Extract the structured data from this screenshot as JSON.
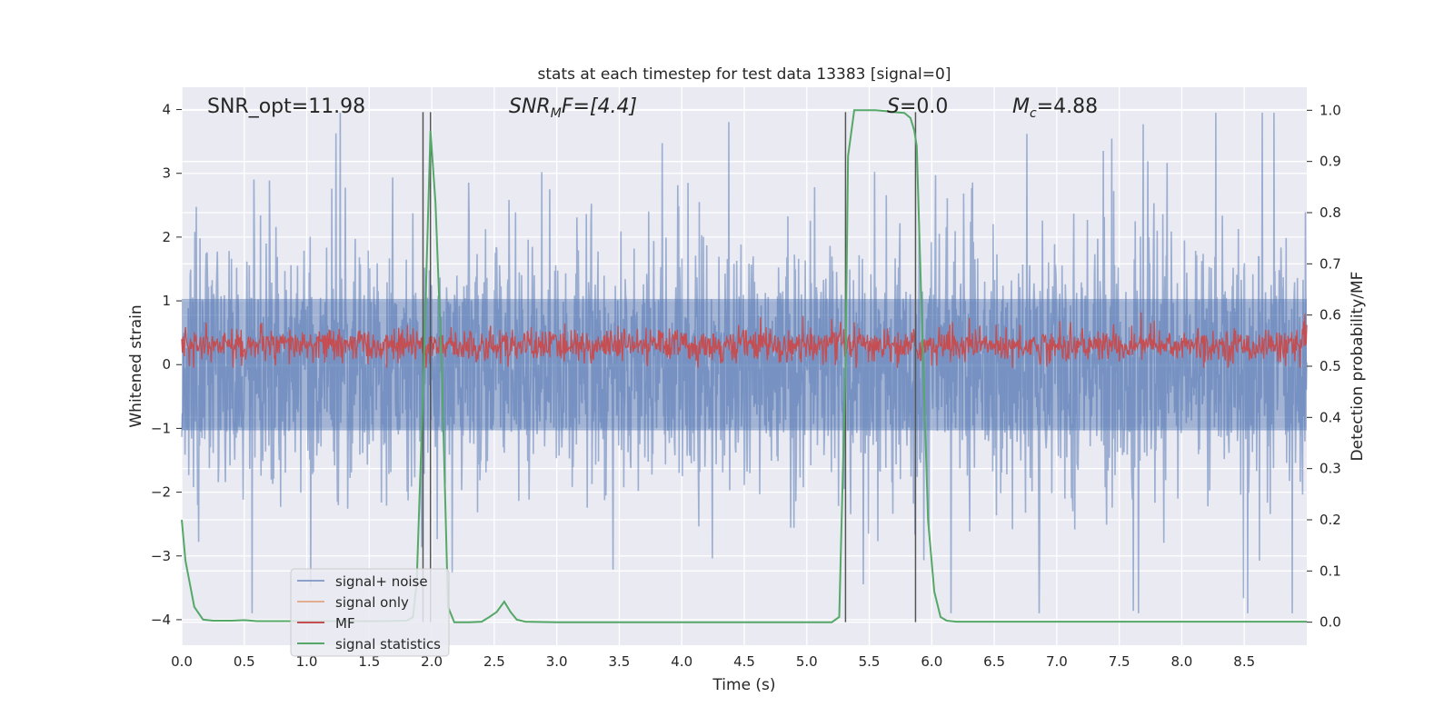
{
  "chart_data": {
    "type": "line",
    "title": "stats at each timestep for test data 13383 [signal=0]",
    "xlabel": "Time (s)",
    "ylabel": "Whitened strain",
    "ylabel_right": "Detection probability/MF",
    "xlim": [
      0,
      9.0
    ],
    "ylim": [
      -4.4,
      4.35
    ],
    "ylim_right": [
      -0.045,
      1.045
    ],
    "x_ticks": [
      0,
      0.5,
      1.0,
      1.5,
      2.0,
      2.5,
      3.0,
      3.5,
      4.0,
      4.5,
      5.0,
      5.5,
      6.0,
      6.5,
      7.0,
      7.5,
      8.0,
      8.5
    ],
    "x_tick_labels": [
      "0.0",
      "0.5",
      "1.0",
      "1.5",
      "2.0",
      "2.5",
      "3.0",
      "3.5",
      "4.0",
      "4.5",
      "5.0",
      "5.5",
      "6.0",
      "6.5",
      "7.0",
      "7.5",
      "8.0",
      "8.5"
    ],
    "y_ticks": [
      -4,
      -3,
      -2,
      -1,
      0,
      1,
      2,
      3,
      4
    ],
    "y_tick_labels": [
      "−4",
      "−3",
      "−2",
      "−1",
      "0",
      "1",
      "2",
      "3",
      "4"
    ],
    "y_right_ticks": [
      0,
      0.1,
      0.2,
      0.3,
      0.4,
      0.5,
      0.6,
      0.7,
      0.8,
      0.9,
      1.0
    ],
    "y_right_tick_labels": [
      "0.0",
      "0.1",
      "0.2",
      "0.3",
      "0.4",
      "0.5",
      "0.6",
      "0.7",
      "0.8",
      "0.9",
      "1.0"
    ],
    "grid": true,
    "legend_position": "lower-left",
    "annotations": {
      "snr_opt": "SNR_opt=11.98",
      "snr_mf_base": "SNR",
      "snr_mf_sub": "M",
      "snr_mf_rest": "F=[4.4]",
      "s_ital": "S",
      "s_rest": "=0.0",
      "mc_base": "M",
      "mc_sub": "c",
      "mc_rest": "=4.88"
    },
    "vertical_lines": [
      1.93,
      1.99,
      5.31,
      5.87
    ],
    "series": [
      {
        "name": "signal+ noise",
        "color": "#4c72b0",
        "axis": "left",
        "style": "dense noisy band",
        "typical_range": [
          -1.6,
          1.6
        ],
        "peak_range": [
          -3.9,
          3.95
        ]
      },
      {
        "name": "signal only",
        "color": "#dd8452",
        "axis": "left",
        "values_note": "not visible"
      },
      {
        "name": "MF",
        "color": "#c44e52",
        "axis": "left",
        "style": "noisy band",
        "typical_range": [
          0.05,
          0.55
        ],
        "peak_range": [
          -0.05,
          0.95
        ]
      },
      {
        "name": "signal statistics",
        "color": "#55a868",
        "axis": "right",
        "x": [
          0.0,
          0.03,
          0.1,
          0.17,
          0.25,
          0.4,
          0.5,
          0.6,
          0.8,
          1.0,
          1.2,
          1.4,
          1.6,
          1.8,
          1.85,
          1.88,
          1.93,
          1.99,
          2.03,
          2.08,
          2.13,
          2.18,
          2.22,
          2.3,
          2.4,
          2.46,
          2.52,
          2.58,
          2.63,
          2.68,
          2.75,
          3.0,
          3.5,
          4.0,
          4.5,
          5.0,
          5.2,
          5.26,
          5.31,
          5.33,
          5.38,
          5.45,
          5.55,
          5.65,
          5.72,
          5.78,
          5.83,
          5.86,
          5.88,
          5.92,
          5.97,
          6.02,
          6.07,
          6.12,
          6.2,
          6.5,
          7.0,
          7.5,
          8.0,
          8.5,
          9.0
        ],
        "y": [
          0.2,
          0.12,
          0.03,
          0.005,
          0.003,
          0.003,
          0.004,
          0.002,
          0.002,
          0.002,
          0.002,
          0.002,
          0.002,
          0.003,
          0.01,
          0.08,
          0.45,
          0.96,
          0.82,
          0.5,
          0.03,
          0.0,
          0.0,
          0.0,
          0.001,
          0.01,
          0.02,
          0.04,
          0.02,
          0.005,
          0.001,
          0.0,
          0.0,
          0.0,
          0.0,
          0.0,
          0.0,
          0.01,
          0.5,
          0.91,
          1.0,
          1.0,
          1.0,
          0.998,
          0.996,
          0.995,
          0.985,
          0.96,
          0.93,
          0.6,
          0.2,
          0.06,
          0.01,
          0.003,
          0.001,
          0.001,
          0.001,
          0.001,
          0.001,
          0.001,
          0.001
        ]
      }
    ]
  }
}
